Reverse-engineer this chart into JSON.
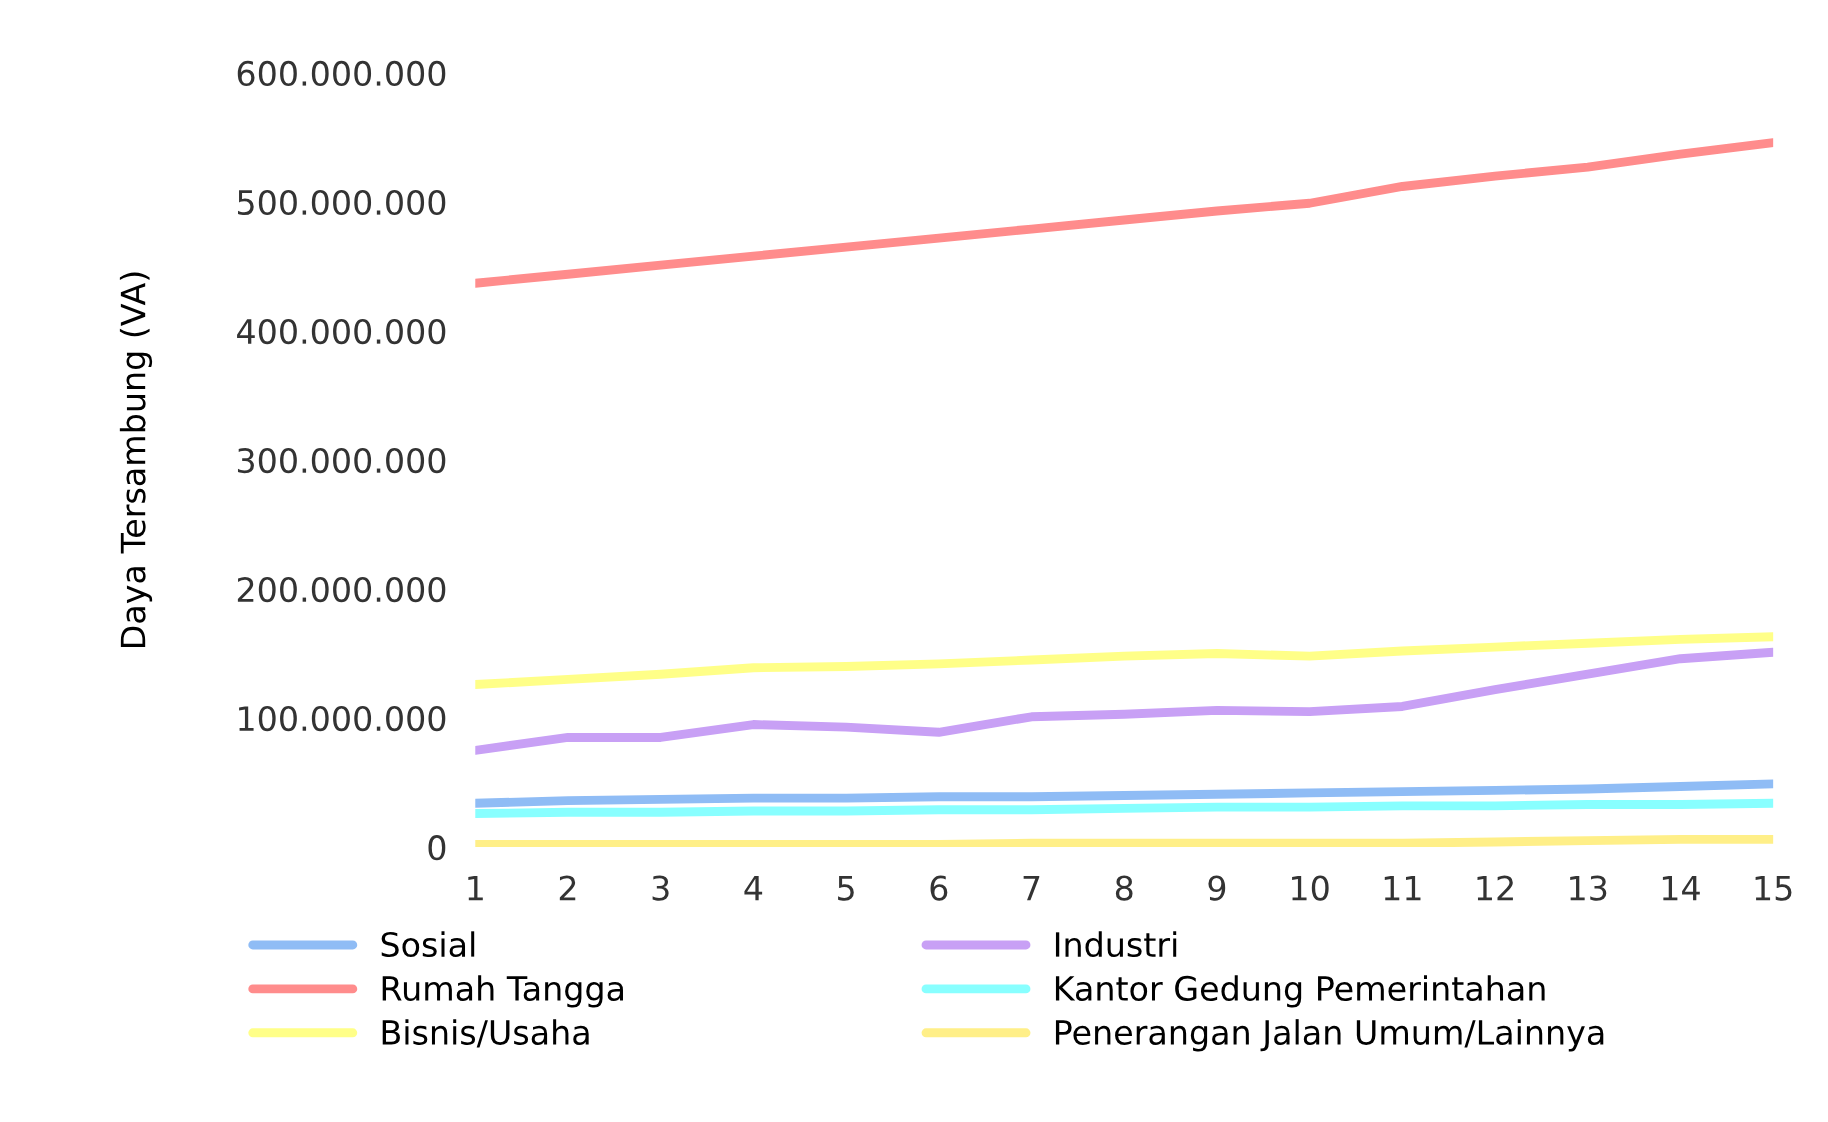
{
  "chart_data": {
    "type": "line",
    "ylabel": "Daya Tersambung (VA)",
    "x": [
      1,
      2,
      3,
      4,
      5,
      6,
      7,
      8,
      9,
      10,
      11,
      12,
      13,
      14,
      15
    ],
    "xlim": [
      1,
      15
    ],
    "xticks": [
      1,
      2,
      3,
      4,
      5,
      6,
      7,
      8,
      9,
      10,
      11,
      12,
      13,
      14,
      15
    ],
    "ylim": [
      0,
      600000000
    ],
    "yticks": [
      {
        "value": 0,
        "label": "0"
      },
      {
        "value": 100000000,
        "label": "100.000.000"
      },
      {
        "value": 200000000,
        "label": "200.000.000"
      },
      {
        "value": 300000000,
        "label": "300.000.000"
      },
      {
        "value": 400000000,
        "label": "400.000.000"
      },
      {
        "value": 500000000,
        "label": "500.000.000"
      },
      {
        "value": 600000000,
        "label": "600.000.000"
      }
    ],
    "grid": false,
    "legend": "bottom",
    "marker": "none",
    "line_style": "solid",
    "series": [
      {
        "name": "Sosial",
        "color": "#8fbcf5",
        "values": [
          34000000,
          36000000,
          37000000,
          38000000,
          38000000,
          39000000,
          39000000,
          40000000,
          41000000,
          42000000,
          43000000,
          44000000,
          45000000,
          47000000,
          49000000
        ]
      },
      {
        "name": "Rumah Tangga",
        "color": "#ff8c8c",
        "values": [
          437000000,
          444000000,
          451000000,
          458000000,
          465000000,
          472000000,
          479000000,
          486000000,
          493000000,
          499000000,
          512000000,
          520000000,
          527000000,
          537000000,
          546000000
        ]
      },
      {
        "name": "Bisnis/Usaha",
        "color": "#ffff88",
        "values": [
          126000000,
          130000000,
          134000000,
          139000000,
          140000000,
          142000000,
          145000000,
          148000000,
          150000000,
          148000000,
          152000000,
          155000000,
          158000000,
          161000000,
          163000000
        ]
      },
      {
        "name": "Industri",
        "color": "#c8a0f5",
        "values": [
          75000000,
          85000000,
          85000000,
          95000000,
          93000000,
          89000000,
          101000000,
          103000000,
          106000000,
          105000000,
          109000000,
          122000000,
          134000000,
          146000000,
          151000000
        ]
      },
      {
        "name": "Kantor Gedung Pemerintahan",
        "color": "#88ffff",
        "values": [
          26000000,
          27000000,
          27000000,
          28000000,
          28000000,
          29000000,
          29000000,
          30000000,
          31000000,
          31000000,
          32000000,
          32000000,
          33000000,
          33000000,
          34000000
        ]
      },
      {
        "name": "Penerangan Jalan Umum/Lainnya",
        "color": "#ffef88",
        "values": [
          2000000,
          2000000,
          2000000,
          2000000,
          2000000,
          2000000,
          3000000,
          3000000,
          3000000,
          3000000,
          3000000,
          4000000,
          5000000,
          6000000,
          6000000
        ]
      }
    ]
  }
}
